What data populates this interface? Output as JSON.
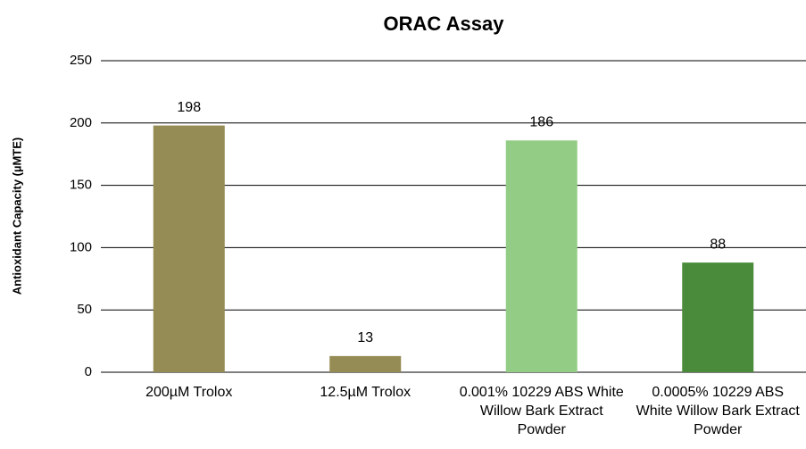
{
  "chart_data": {
    "type": "bar",
    "title": "ORAC Assay",
    "y_label": "Antioxidant Capacity (µMTE)",
    "categories": [
      "200µM Trolox",
      "12.5µM Trolox",
      "0.001% 10229 ABS White Willow Bark Extract Powder",
      "0.0005% 10229 ABS White Willow Bark Extract Powder"
    ],
    "values": [
      198,
      13,
      186,
      88
    ],
    "colors": [
      "#958b54",
      "#958b54",
      "#93cd85",
      "#4a8a3b"
    ],
    "ylim": [
      0,
      250
    ],
    "yticks": [
      0,
      50,
      100,
      150,
      200,
      250
    ],
    "grid": true
  }
}
